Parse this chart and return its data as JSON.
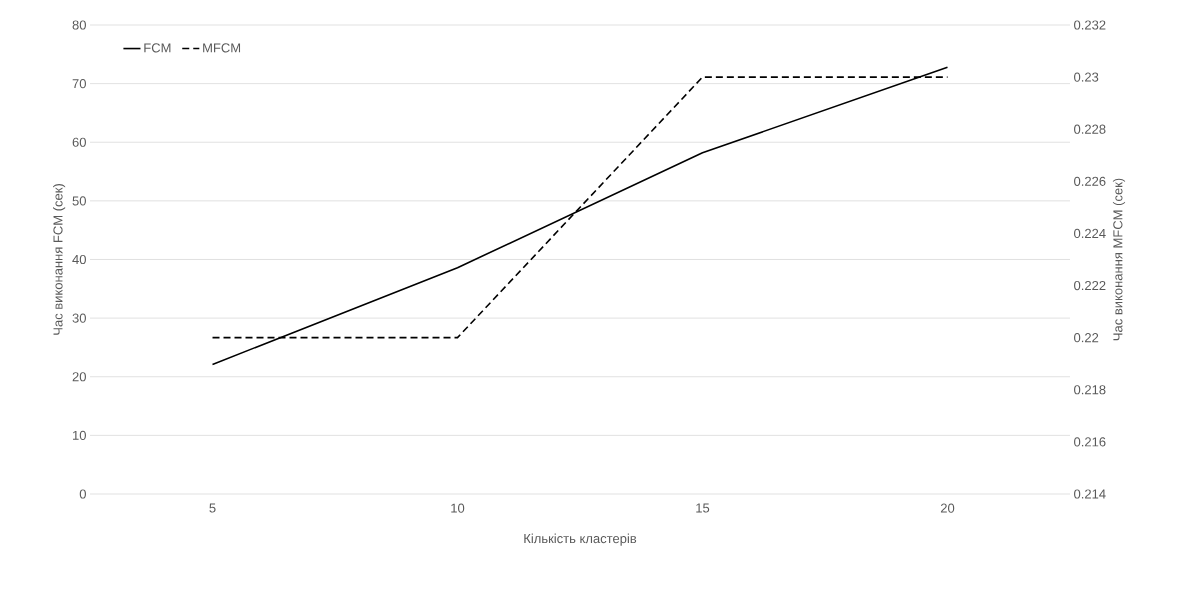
{
  "chart_data": {
    "type": "line",
    "xlabel": "Кількість кластерів",
    "ylabel": "Час виконання FCM (сек)",
    "y2label": "Час виконання MFCM (сек)",
    "categories": [
      "5",
      "10",
      "15",
      "20"
    ],
    "series": [
      {
        "name": "FCM",
        "color": "#000000",
        "line_style": "solid",
        "values": [
          22.1,
          38.6,
          58.2,
          72.8
        ]
      },
      {
        "name": "MFCM",
        "color": "#000000",
        "line_style": "dashed",
        "axis": "y2",
        "values": [
          0.22,
          0.22,
          0.23,
          0.23
        ]
      }
    ],
    "ylim": [
      0,
      80
    ],
    "yticks": [
      0,
      10,
      20,
      30,
      40,
      50,
      60,
      70,
      80
    ],
    "y2lim": [
      0.214,
      0.232
    ],
    "y2ticks": [
      0.214,
      0.216,
      0.218,
      0.22,
      0.222,
      0.224,
      0.226,
      0.228,
      0.23,
      0.232
    ],
    "grid": "y",
    "legend": "top left",
    "marker": "none"
  }
}
